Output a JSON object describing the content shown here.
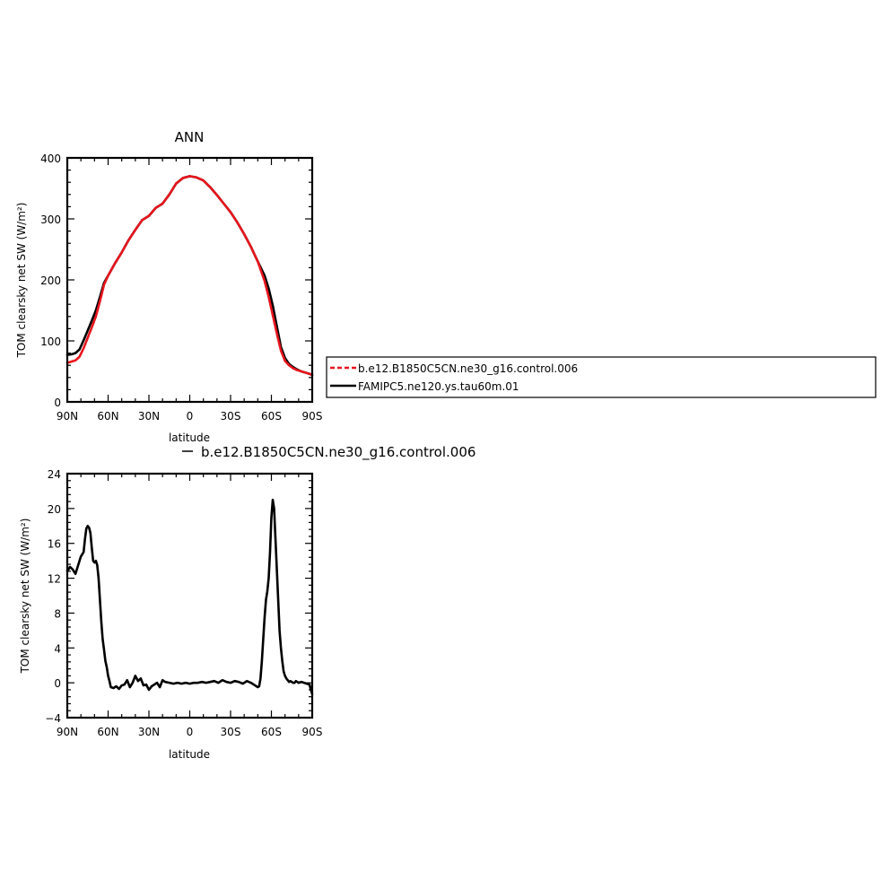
{
  "chart_data": [
    {
      "type": "line",
      "title": "ANN",
      "xlabel": "latitude",
      "ylabel": "TOM clearsky net SW (W/m²)",
      "xlim": [
        -90,
        90
      ],
      "ylim": [
        0,
        400
      ],
      "xticks": [
        -90,
        -60,
        -30,
        0,
        30,
        60,
        90
      ],
      "xtick_labels": [
        "90N",
        "60N",
        "30N",
        "0",
        "30S",
        "60S",
        "90S"
      ],
      "yticks": [
        0,
        100,
        200,
        300,
        400
      ],
      "ytick_labels": [
        "0",
        "100",
        "200",
        "300",
        "400"
      ],
      "legend": {
        "placement": "right",
        "entries": [
          "b.e12.B1850C5CN.ne30_g16.control.006",
          "FAMIPC5.ne120.ys.tau60m.01"
        ]
      },
      "series": [
        {
          "name": "b.e12.B1850C5CN.ne30_g16.control.006",
          "color": "#e8141c",
          "dash": true,
          "x": [
            -90,
            -87,
            -84,
            -81,
            -78,
            -75,
            -72,
            -69,
            -66,
            -63,
            -60,
            -55,
            -50,
            -45,
            -40,
            -35,
            -30,
            -25,
            -20,
            -15,
            -10,
            -5,
            0,
            5,
            10,
            15,
            20,
            25,
            30,
            35,
            40,
            45,
            50,
            55,
            58,
            61,
            64,
            67,
            70,
            73,
            76,
            79,
            82,
            85,
            88,
            90
          ],
          "values": [
            64,
            66,
            68,
            74,
            88,
            105,
            122,
            140,
            165,
            192,
            207,
            227,
            245,
            265,
            282,
            298,
            305,
            318,
            325,
            340,
            358,
            367,
            370,
            368,
            363,
            352,
            339,
            325,
            311,
            294,
            275,
            254,
            230,
            198,
            172,
            142,
            112,
            84,
            67,
            60,
            55,
            52,
            50,
            48,
            46,
            44
          ]
        },
        {
          "name": "FAMIPC5.ne120.ys.tau60m.01",
          "color": "#000000",
          "dash": false,
          "x": [
            -90,
            -87,
            -84,
            -81,
            -78,
            -75,
            -72,
            -69,
            -66,
            -63,
            -60,
            -55,
            -50,
            -45,
            -40,
            -35,
            -30,
            -25,
            -20,
            -15,
            -10,
            -5,
            0,
            5,
            10,
            15,
            20,
            25,
            30,
            35,
            40,
            45,
            50,
            55,
            58,
            61,
            64,
            67,
            70,
            73,
            76,
            79,
            82,
            85,
            88,
            90
          ],
          "values": [
            77,
            78,
            80,
            86,
            101,
            117,
            133,
            150,
            172,
            195,
            207,
            227,
            245,
            265,
            282,
            298,
            305,
            318,
            325,
            340,
            358,
            367,
            370,
            368,
            363,
            352,
            339,
            325,
            311,
            294,
            275,
            254,
            230,
            207,
            186,
            158,
            124,
            90,
            72,
            62,
            57,
            53,
            50,
            48,
            46,
            44
          ]
        }
      ]
    },
    {
      "type": "line",
      "title": "b.e12.B1850C5CN.ne30_g16.control.006",
      "xlabel": "latitude",
      "ylabel": "TOM clearsky net SW (W/m²)",
      "xlim": [
        -90,
        90
      ],
      "ylim": [
        -4,
        24
      ],
      "xticks": [
        -90,
        -60,
        -30,
        0,
        30,
        60,
        90
      ],
      "xtick_labels": [
        "90N",
        "60N",
        "30N",
        "0",
        "30S",
        "60S",
        "90S"
      ],
      "yticks": [
        -4,
        0,
        4,
        8,
        12,
        16,
        20,
        24
      ],
      "ytick_labels": [
        "−4",
        "0",
        "4",
        "8",
        "12",
        "16",
        "20",
        "24"
      ],
      "series": [
        {
          "color": "#000000",
          "x": [
            -90,
            -88,
            -86,
            -84,
            -82,
            -80,
            -78,
            -77,
            -76,
            -75,
            -74,
            -73,
            -72,
            -71,
            -70,
            -69,
            -68,
            -67,
            -66,
            -65,
            -64,
            -63,
            -62,
            -61,
            -60,
            -59,
            -58,
            -56,
            -54,
            -52,
            -50,
            -48,
            -46,
            -44,
            -42,
            -40,
            -38,
            -36,
            -34,
            -32,
            -30,
            -28,
            -26,
            -24,
            -22,
            -20,
            -18,
            -15,
            -12,
            -9,
            -6,
            -3,
            0,
            3,
            6,
            9,
            12,
            15,
            18,
            21,
            24,
            27,
            30,
            33,
            36,
            39,
            42,
            45,
            48,
            50,
            51,
            52,
            53,
            54,
            55,
            56,
            57,
            58,
            59,
            60,
            61,
            62,
            63,
            64,
            65,
            66,
            67,
            68,
            69,
            70,
            71,
            72,
            73,
            74,
            75,
            76,
            77,
            78,
            80,
            82,
            84,
            86,
            88,
            89,
            90
          ],
          "values": [
            12.8,
            13.3,
            13.0,
            12.5,
            13.5,
            14.5,
            15.0,
            16.5,
            17.7,
            18.0,
            17.8,
            17.2,
            15.5,
            14.0,
            13.8,
            14.0,
            13.5,
            12.0,
            9.5,
            7.0,
            5.0,
            3.8,
            2.5,
            1.8,
            0.8,
            0.2,
            -0.5,
            -0.6,
            -0.4,
            -0.7,
            -0.3,
            -0.2,
            0.3,
            -0.5,
            0.0,
            0.8,
            0.2,
            0.5,
            -0.3,
            -0.2,
            -0.8,
            -0.4,
            -0.2,
            0.0,
            -0.5,
            0.3,
            0.1,
            0.0,
            -0.1,
            0.0,
            -0.1,
            0.0,
            -0.1,
            0.0,
            0.0,
            0.1,
            0.0,
            0.1,
            0.2,
            0.0,
            0.3,
            0.1,
            0.0,
            0.2,
            0.1,
            -0.1,
            0.2,
            0.0,
            -0.3,
            -0.5,
            -0.4,
            0.5,
            2.5,
            5.0,
            7.5,
            9.5,
            10.5,
            12.0,
            15.0,
            19.0,
            21.0,
            20.0,
            16.5,
            13.0,
            9.5,
            6.0,
            4.0,
            2.5,
            1.3,
            0.8,
            0.5,
            0.3,
            0.1,
            0.2,
            0.1,
            0.0,
            0.0,
            0.2,
            0.0,
            0.1,
            0.0,
            -0.1,
            -0.2,
            -0.8,
            -1.3
          ]
        }
      ]
    }
  ]
}
